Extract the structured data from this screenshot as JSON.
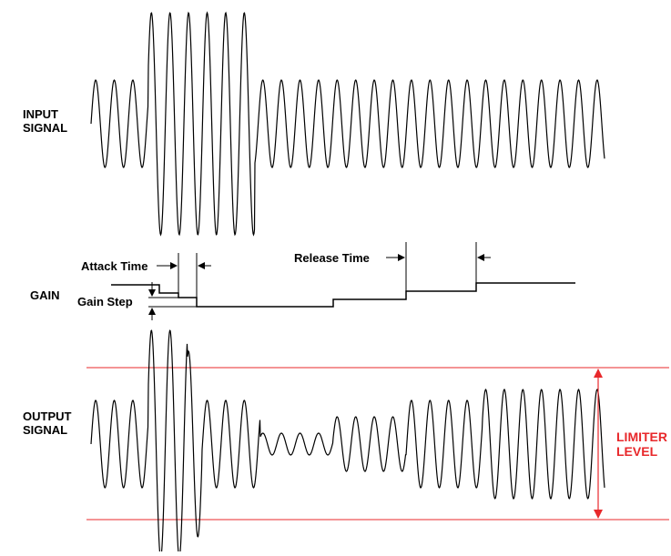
{
  "labels": {
    "input": [
      "INPUT",
      "SIGNAL"
    ],
    "gain": "GAIN",
    "output": [
      "OUTPUT",
      "SIGNAL"
    ],
    "limiter": [
      "LIMITER",
      "LEVEL"
    ],
    "attack_time": "Attack Time",
    "release_time": "Release Time",
    "gain_step": "Gain Step"
  },
  "colors": {
    "wave": "#000000",
    "limiter": "#e8282b"
  }
}
